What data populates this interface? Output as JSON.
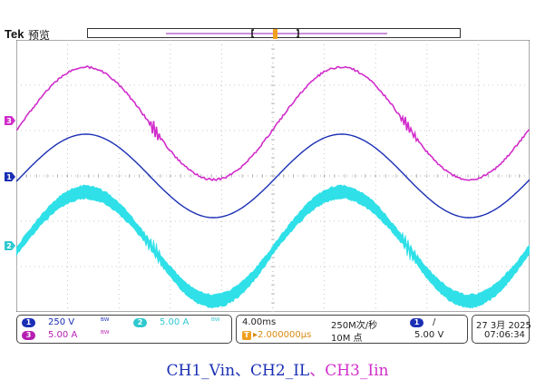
{
  "header": {
    "brand": "Tek",
    "mode": "预览"
  },
  "colors": {
    "ch1": "#1a2fb4",
    "ch2": "#2fe0e8",
    "ch3": "#d12ccb",
    "trigger": "#f0a020"
  },
  "markers": {
    "ch1": "1",
    "ch2": "2",
    "ch3": "3",
    "trigger": "T"
  },
  "status": {
    "ch1_scale": "250 V",
    "ch2_scale": "5.00 A",
    "ch3_scale": "5.00 A",
    "timebase": "4.00ms",
    "sample_rate": "250M次/秒",
    "record_length": "10M 点",
    "trigger_position": "▸2.000000μs",
    "trigger_source": "1",
    "trigger_slope": "/",
    "trigger_level": "5.00 V",
    "date": "27 3月 2025",
    "time": "07:06:34",
    "bw_icon": "bandwidth-limit-icon"
  },
  "caption": {
    "ch1": "CH1_Vin",
    "sep1": "、",
    "ch2": "CH2_IL",
    "sep2": "、",
    "ch3": "CH3_Iin"
  }
}
